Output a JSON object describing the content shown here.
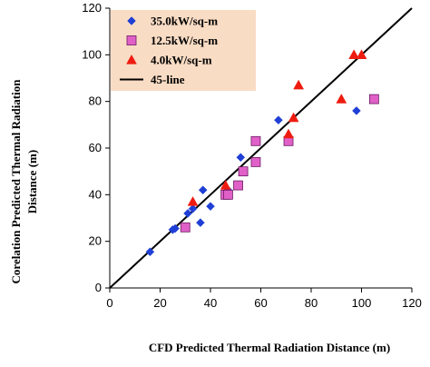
{
  "chart_data": {
    "type": "scatter",
    "xlabel": "CFD Predicted Thermal Radiation Distance (m)",
    "ylabel_lines": [
      "Corelation Predicted Thermal Radiation",
      "Distance (m)"
    ],
    "xlim": [
      0,
      120
    ],
    "ylim": [
      0,
      120
    ],
    "xticks": [
      "0",
      "20",
      "40",
      "60",
      "80",
      "100",
      "120"
    ],
    "yticks": [
      "0",
      "20",
      "40",
      "60",
      "80",
      "100",
      "120"
    ],
    "grid": false,
    "legend_position": "top-left",
    "legend_background": "#f9dcc4",
    "series": [
      {
        "name": "35.0kW/sq-m",
        "marker": "diamond",
        "color": "#1f3fd6",
        "points": [
          [
            16,
            15.5
          ],
          [
            25,
            25
          ],
          [
            26,
            25.5
          ],
          [
            31,
            32
          ],
          [
            33,
            34
          ],
          [
            36,
            28
          ],
          [
            37,
            42
          ],
          [
            40,
            35
          ],
          [
            47,
            42
          ],
          [
            52,
            56
          ],
          [
            67,
            72
          ],
          [
            98,
            76
          ]
        ]
      },
      {
        "name": "12.5kW/sq-m",
        "marker": "square",
        "color": "#e060c8",
        "points": [
          [
            30,
            26
          ],
          [
            46,
            40
          ],
          [
            47,
            40
          ],
          [
            51,
            44
          ],
          [
            53,
            50
          ],
          [
            58,
            54
          ],
          [
            58,
            63
          ],
          [
            71,
            63
          ],
          [
            105,
            81
          ]
        ]
      },
      {
        "name": "4.0kW/sq-m",
        "marker": "triangle",
        "color": "#ee1c10",
        "points": [
          [
            33,
            37
          ],
          [
            46,
            44
          ],
          [
            71,
            66
          ],
          [
            73,
            73
          ],
          [
            75,
            87
          ],
          [
            92,
            81
          ],
          [
            97,
            100
          ],
          [
            100,
            100
          ]
        ]
      },
      {
        "name": "45-line",
        "marker": "line",
        "color": "#000000",
        "points": [
          [
            0,
            0
          ],
          [
            120,
            120
          ]
        ]
      }
    ]
  }
}
